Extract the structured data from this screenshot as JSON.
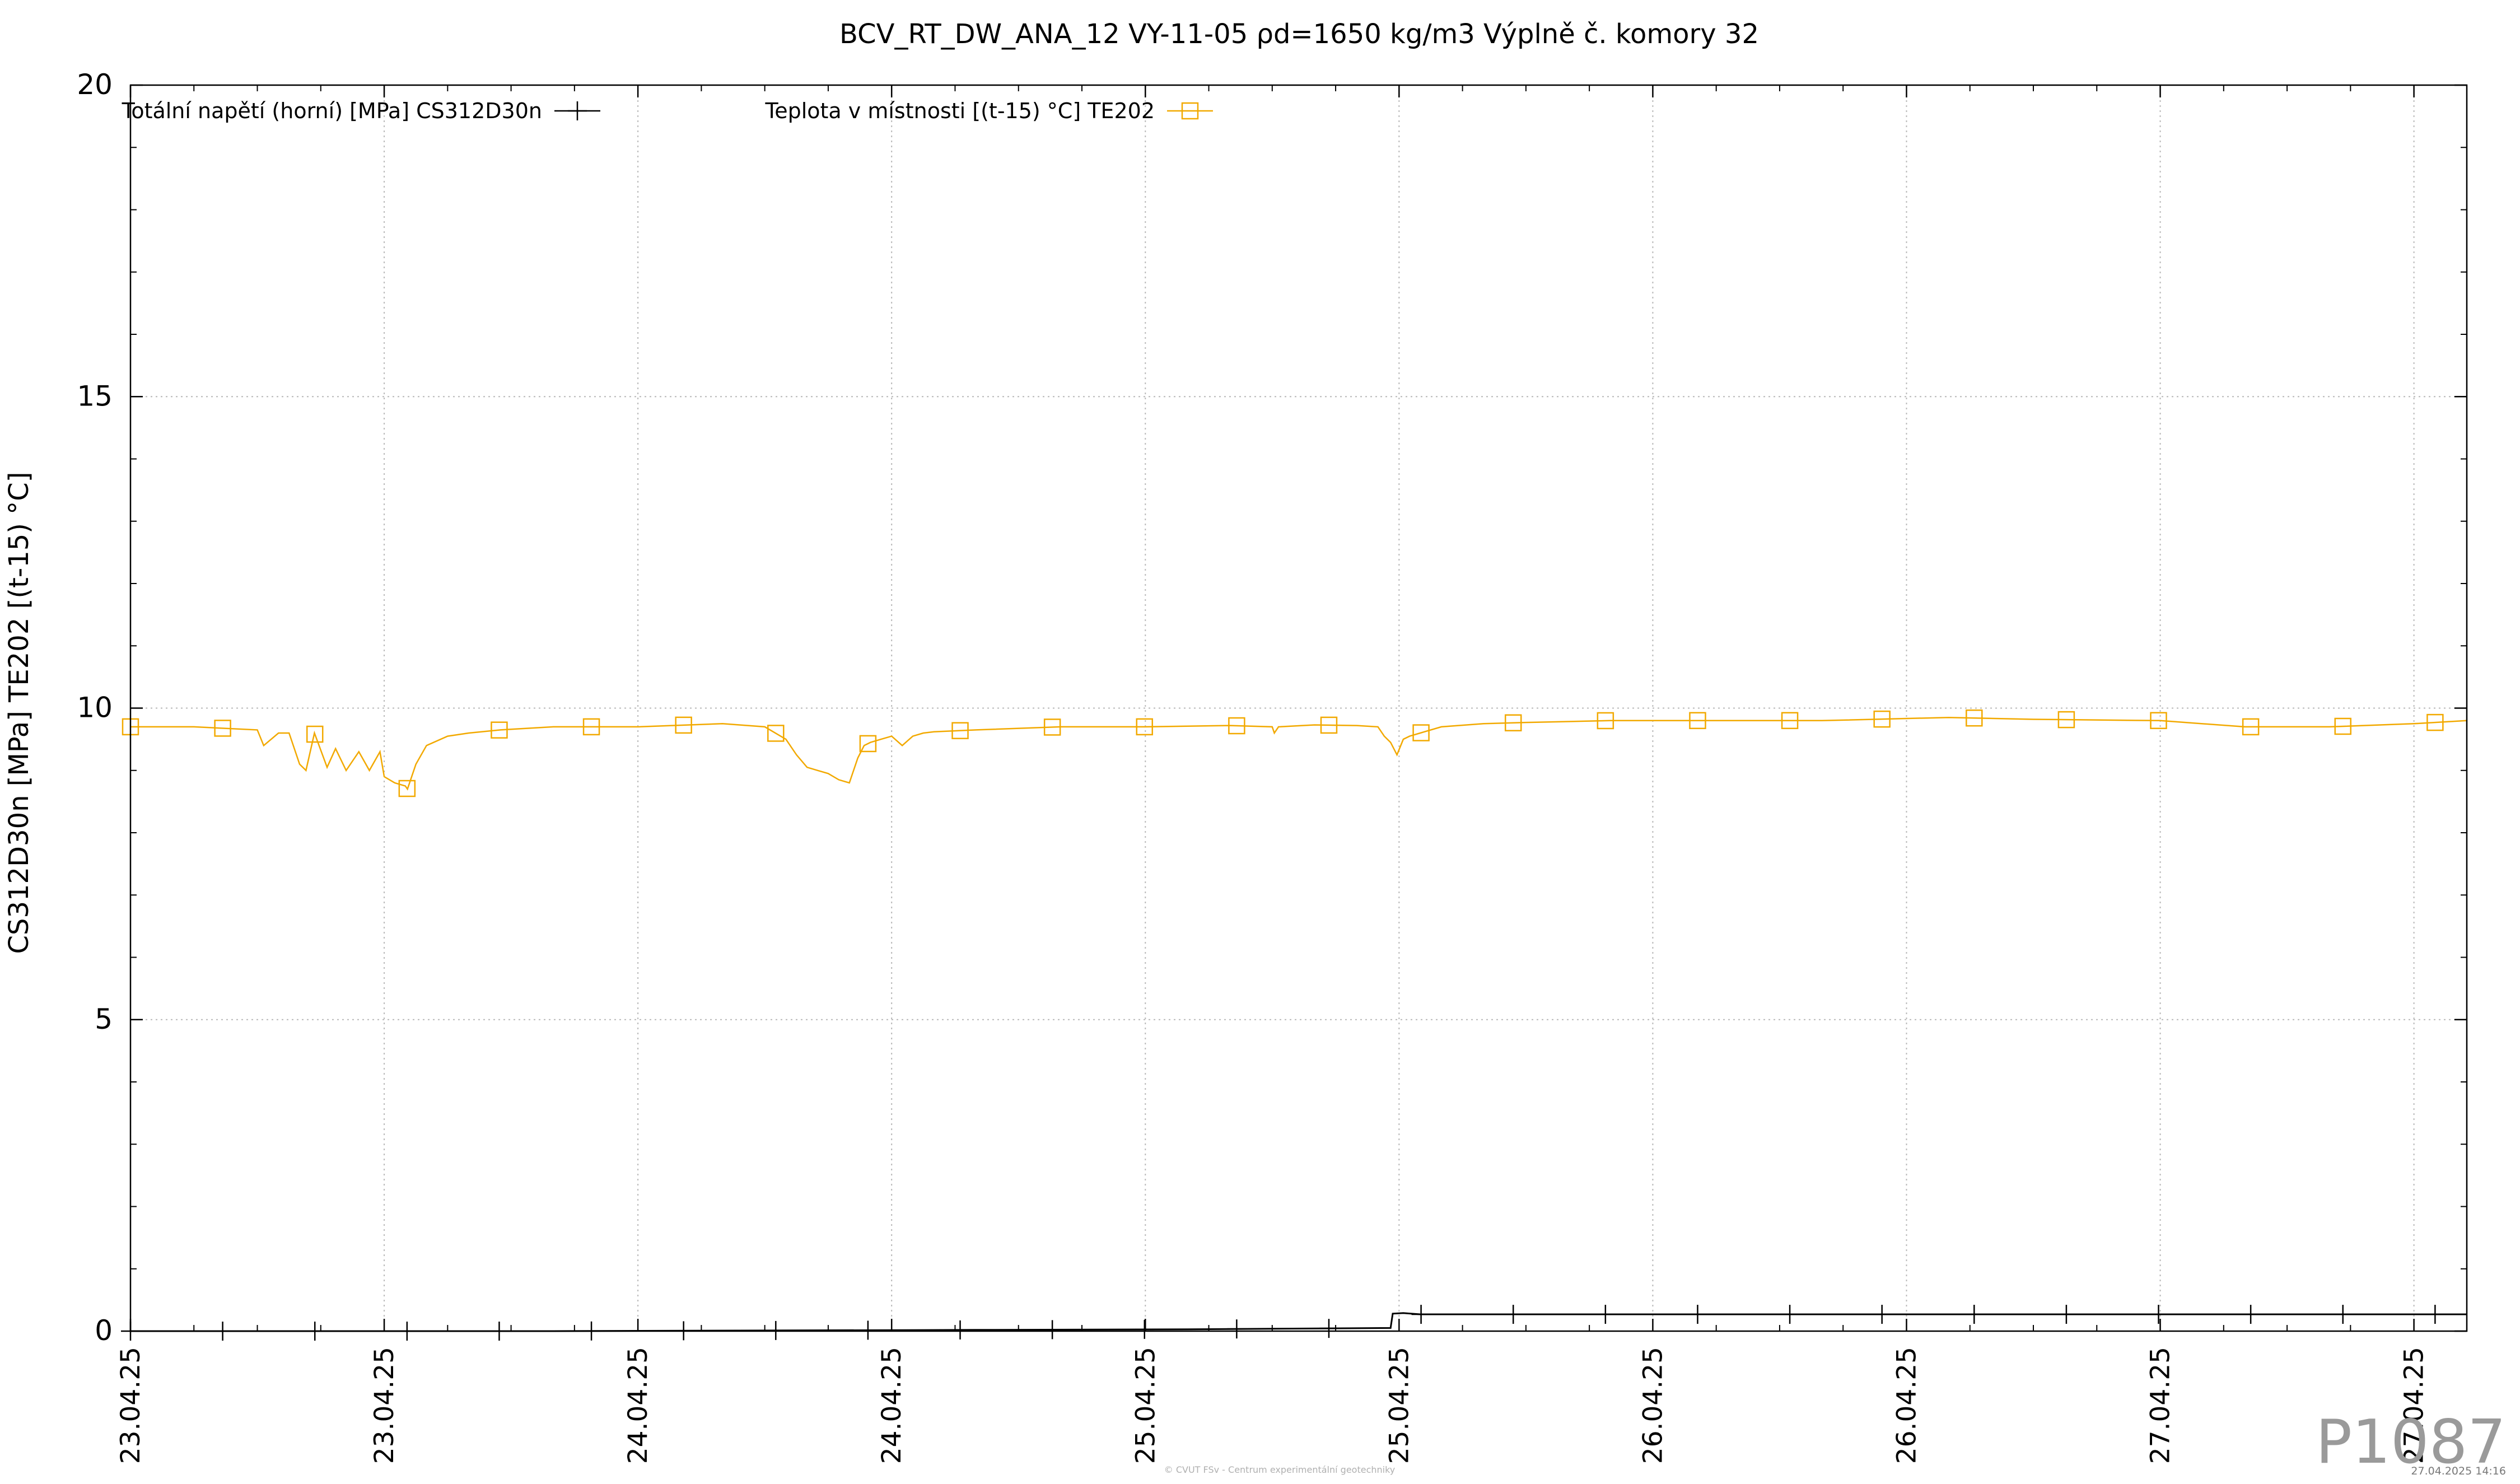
{
  "chart_data": {
    "type": "line",
    "title": "BCV_RT_DW_ANA_12 VY-11-05 ρd=1650 kg/m3 Výplně č. komory 32",
    "xlabel": "",
    "ylabel": "CS312D30n [MPa] TE202 [(t-15) °C]",
    "ylim": [
      0,
      20
    ],
    "yticks": [
      "0",
      "5",
      "10",
      "15",
      "20"
    ],
    "xlim": [
      0,
      110.5
    ],
    "xticks": [
      {
        "x": 0,
        "label": "23.04.25"
      },
      {
        "x": 12,
        "label": "23.04.25"
      },
      {
        "x": 24,
        "label": "24.04.25"
      },
      {
        "x": 36,
        "label": "24.04.25"
      },
      {
        "x": 48,
        "label": "25.04.25"
      },
      {
        "x": 60,
        "label": "25.04.25"
      },
      {
        "x": 72,
        "label": "26.04.25"
      },
      {
        "x": 84,
        "label": "26.04.25"
      },
      {
        "x": 96,
        "label": "27.04.25"
      },
      {
        "x": 108,
        "label": "27.04.25"
      }
    ],
    "grid": true,
    "legend_position": "top",
    "series": [
      {
        "name": "Totální napětí (horní) [MPa] CS312D30n",
        "color": "#000000",
        "marker": "plus",
        "x": [
          0,
          10,
          20,
          30,
          40,
          50,
          59.6,
          59.7,
          60.2,
          61,
          70,
          80,
          90,
          100,
          110.5
        ],
        "y": [
          0.0,
          0.0,
          0.0,
          0.01,
          0.02,
          0.03,
          0.05,
          0.28,
          0.29,
          0.27,
          0.27,
          0.27,
          0.27,
          0.27,
          0.27
        ]
      },
      {
        "name": "Teplota v místnosti [(t-15) °C] TE202",
        "color": "#f2a900",
        "marker": "square",
        "x": [
          0,
          3,
          6,
          6.3,
          7,
          7.5,
          8,
          8.3,
          8.7,
          9.3,
          9.7,
          10.2,
          10.8,
          11.3,
          11.8,
          12,
          12.5,
          13,
          13.1,
          13.5,
          14,
          15,
          16,
          17.5,
          20,
          24,
          28,
          30,
          31,
          31.5,
          32,
          32.5,
          33,
          33.5,
          34,
          34.4,
          34.7,
          35,
          35.5,
          36,
          36.5,
          37,
          37.5,
          38,
          40,
          44,
          48,
          52,
          54,
          54.1,
          54.3,
          56,
          58,
          59,
          59.3,
          59.6,
          59.9,
          60.2,
          60.5,
          61,
          62,
          64,
          66,
          70,
          80,
          86,
          90,
          96,
          100,
          104,
          108,
          110.5
        ],
        "y": [
          9.7,
          9.7,
          9.65,
          9.4,
          9.6,
          9.6,
          9.1,
          9.0,
          9.6,
          9.05,
          9.35,
          9.0,
          9.3,
          9.0,
          9.3,
          8.9,
          8.8,
          8.75,
          8.7,
          9.1,
          9.4,
          9.55,
          9.6,
          9.65,
          9.7,
          9.7,
          9.75,
          9.7,
          9.5,
          9.25,
          9.05,
          9.0,
          8.95,
          8.85,
          8.8,
          9.2,
          9.4,
          9.45,
          9.5,
          9.55,
          9.4,
          9.55,
          9.6,
          9.62,
          9.65,
          9.7,
          9.7,
          9.72,
          9.7,
          9.6,
          9.7,
          9.73,
          9.72,
          9.7,
          9.55,
          9.45,
          9.25,
          9.5,
          9.55,
          9.6,
          9.7,
          9.75,
          9.77,
          9.8,
          9.8,
          9.85,
          9.82,
          9.8,
          9.7,
          9.7,
          9.75,
          9.8
        ]
      }
    ]
  },
  "watermark_id": "P1087",
  "footer_credit": "© CVUT FSv - Centrum experimentální geotechniky",
  "footer_date": "27.04.2025 14:16"
}
